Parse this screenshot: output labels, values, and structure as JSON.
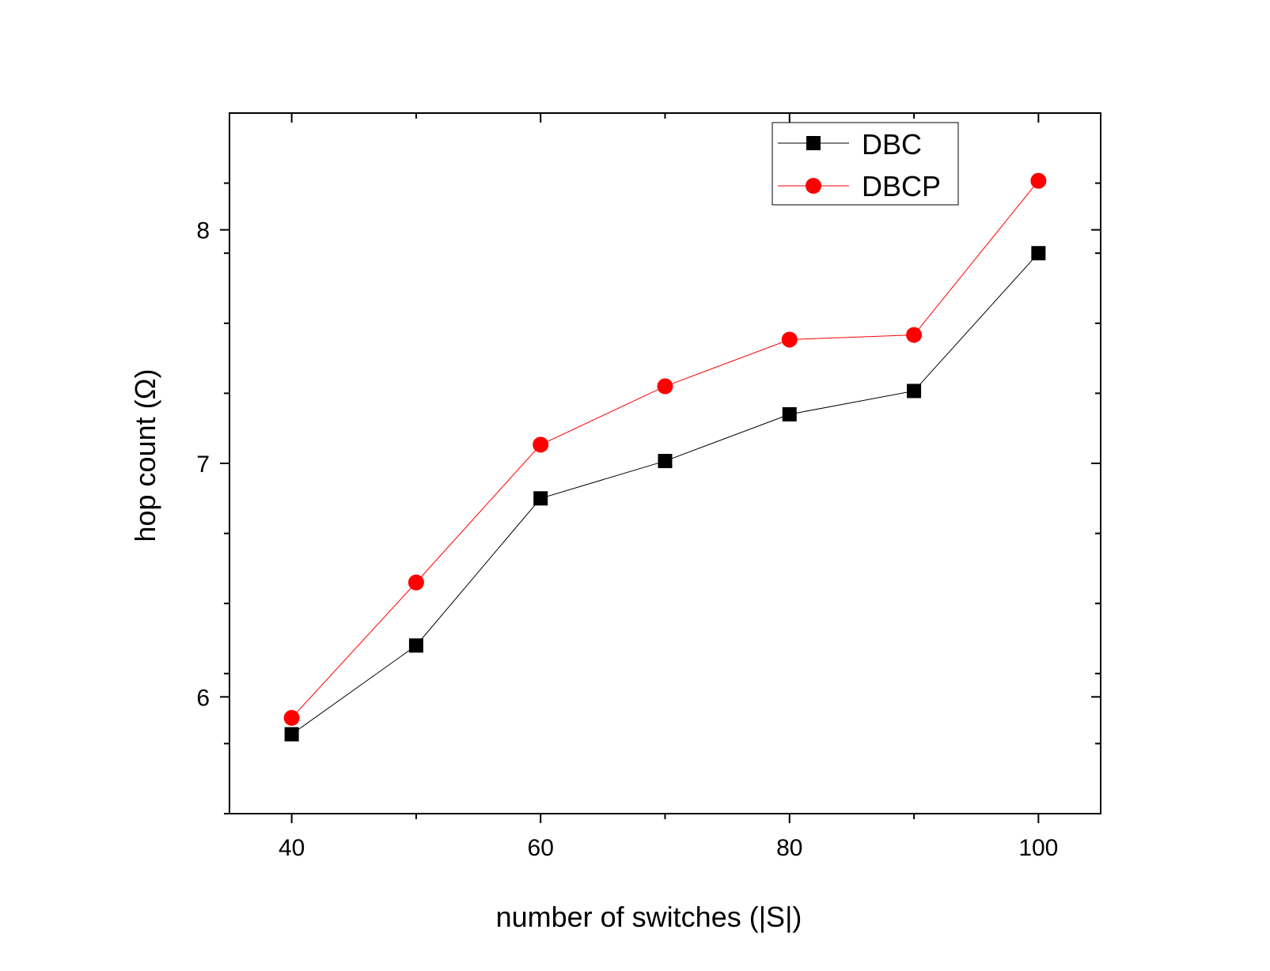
{
  "chart_data": {
    "type": "line",
    "title": "",
    "xlabel": "number of switches (|S|)",
    "ylabel": "hop count (Ω)",
    "xlim": [
      35,
      105
    ],
    "ylim": [
      5.5,
      8.5
    ],
    "x_ticks": [
      40,
      60,
      80,
      100
    ],
    "x_minor_ticks": [
      50,
      70,
      90
    ],
    "y_ticks": [
      6,
      7,
      8
    ],
    "y_minor_ticks": [
      5.5,
      5.8,
      6.1,
      6.4,
      6.7,
      7.0,
      7.3,
      7.6,
      7.9,
      8.2
    ],
    "x": [
      40,
      50,
      60,
      70,
      80,
      90,
      100
    ],
    "series": [
      {
        "name": "DBC",
        "marker": "square",
        "color": "#000000",
        "values": [
          5.84,
          6.22,
          6.85,
          7.01,
          7.21,
          7.31,
          7.9
        ]
      },
      {
        "name": "DBCP",
        "marker": "circle",
        "color": "#ff0000",
        "values": [
          5.91,
          6.49,
          7.08,
          7.33,
          7.53,
          7.55,
          8.21
        ]
      }
    ],
    "legend": {
      "position": "top-right"
    },
    "grid": false
  }
}
